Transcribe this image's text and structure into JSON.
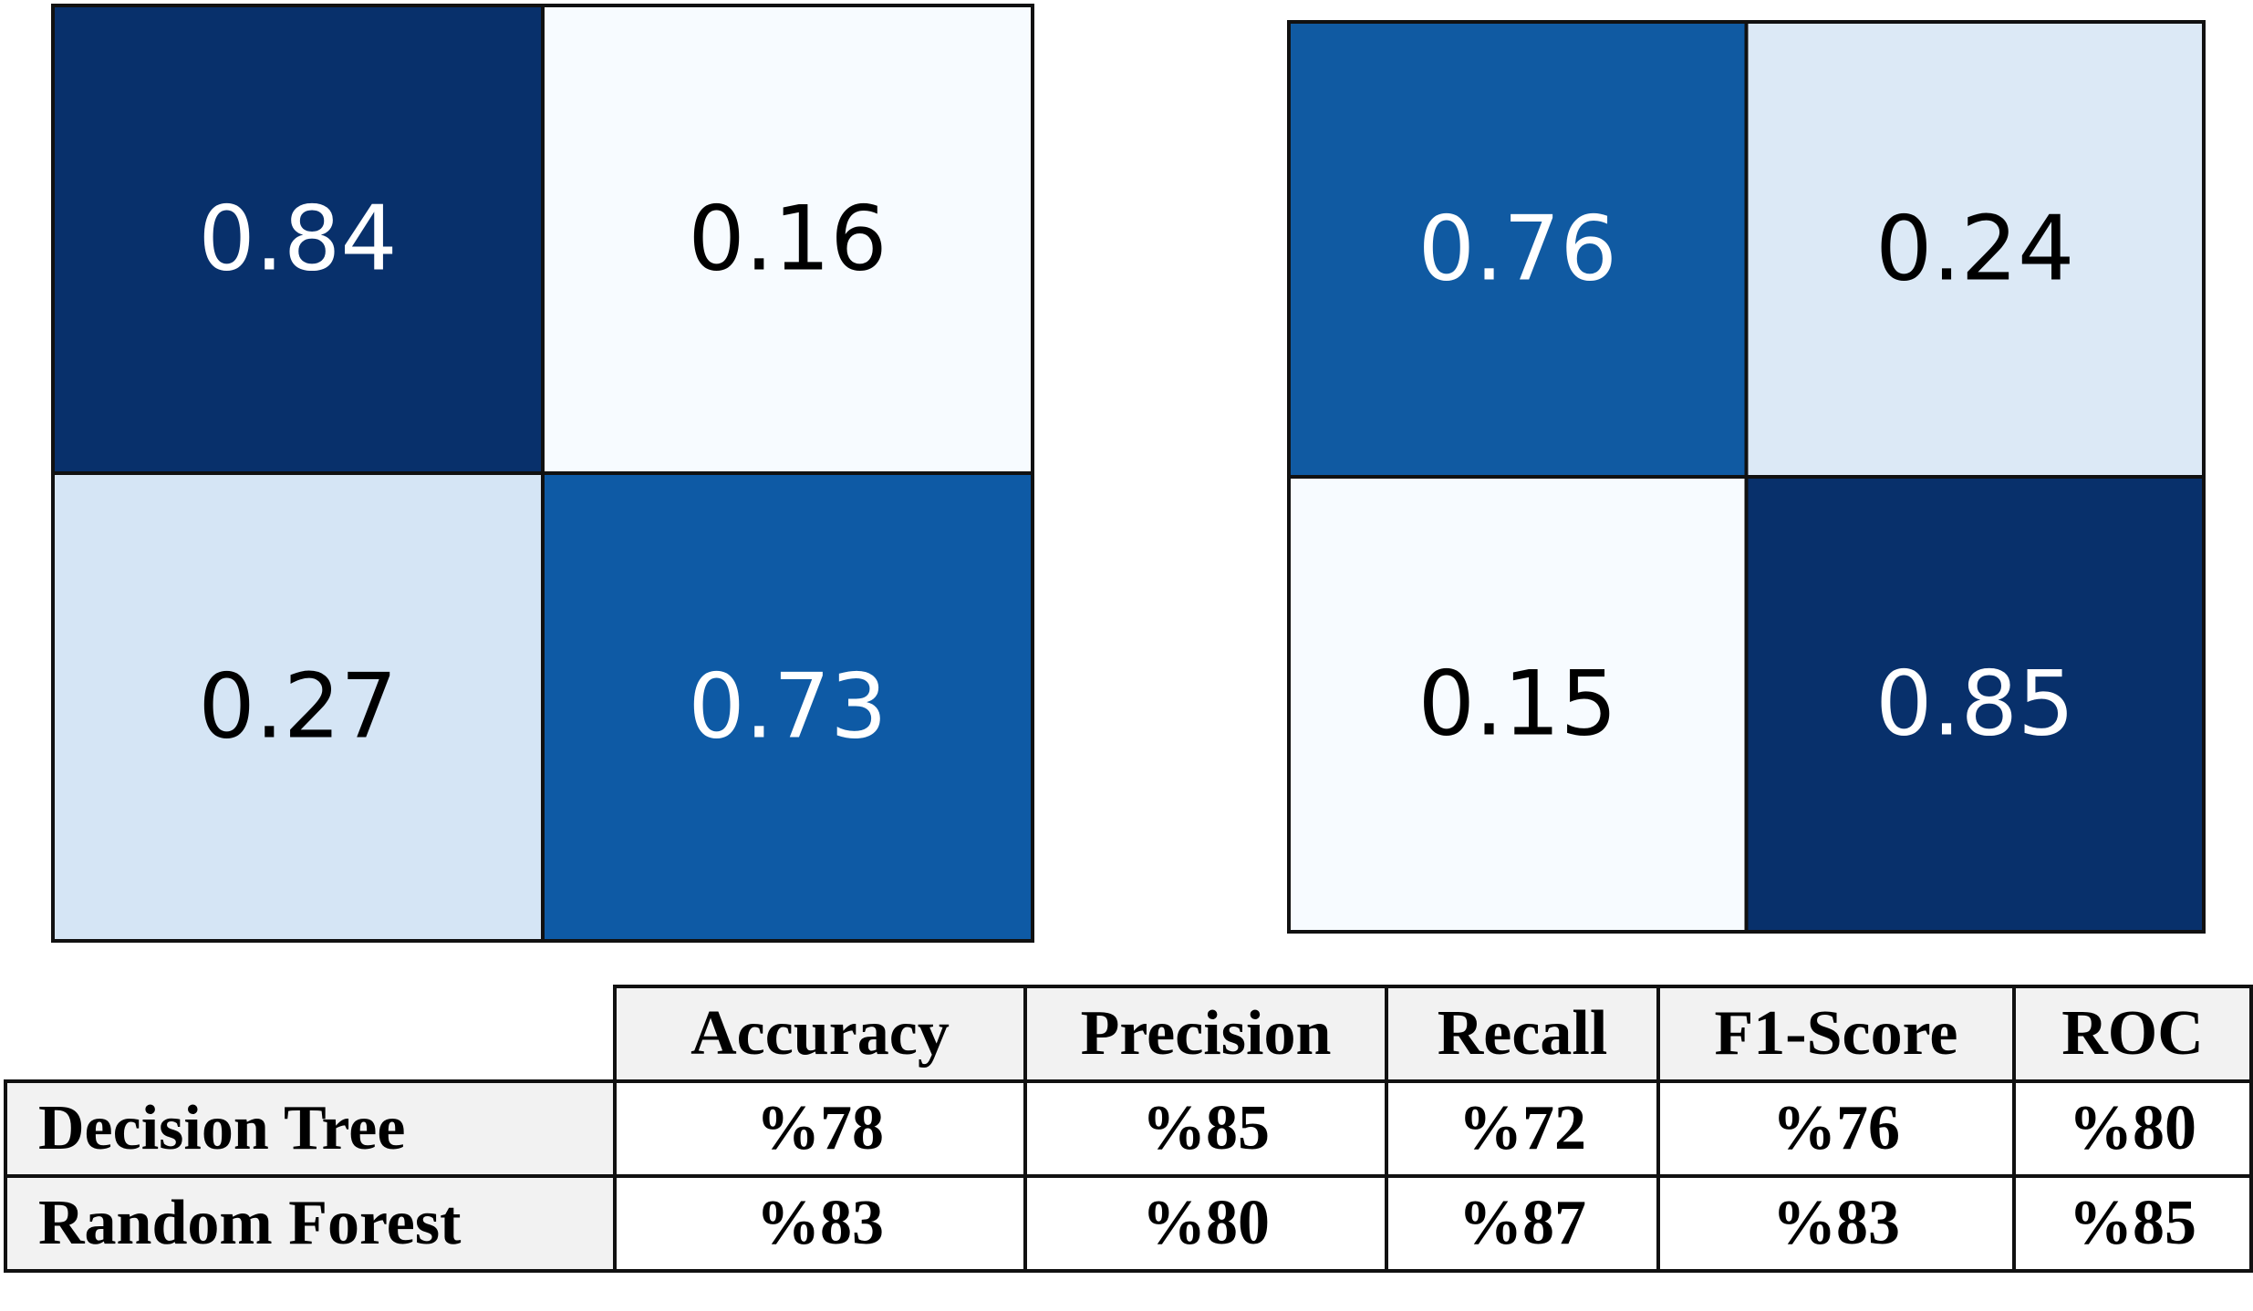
{
  "chart_data": [
    {
      "type": "heatmap",
      "rows": 2,
      "cols": 2,
      "values": [
        [
          0.84,
          0.16
        ],
        [
          0.27,
          0.73
        ]
      ],
      "labels": [
        [
          "0.84",
          "0.16"
        ],
        [
          "0.27",
          "0.73"
        ]
      ],
      "colors": [
        [
          "#08306b",
          "#f7fbff"
        ],
        [
          "#d5e5f5",
          "#0e5aa5"
        ]
      ],
      "text_colors": [
        [
          "#ffffff",
          "#000000"
        ],
        [
          "#000000",
          "#ffffff"
        ]
      ]
    },
    {
      "type": "heatmap",
      "rows": 2,
      "cols": 2,
      "values": [
        [
          0.76,
          0.24
        ],
        [
          0.15,
          0.85
        ]
      ],
      "labels": [
        [
          "0.76",
          "0.24"
        ],
        [
          "0.15",
          "0.85"
        ]
      ],
      "colors": [
        [
          "#105aa2",
          "#dce9f6"
        ],
        [
          "#f7fbff",
          "#08306b"
        ]
      ],
      "text_colors": [
        [
          "#ffffff",
          "#000000"
        ],
        [
          "#000000",
          "#ffffff"
        ]
      ]
    },
    {
      "type": "table",
      "columns": [
        "Accuracy",
        "Precision",
        "Recall",
        "F1-Score",
        "ROC"
      ],
      "rows": [
        {
          "label": "Decision Tree",
          "values": [
            "%78",
            "%85",
            "%72",
            "%76",
            "%80"
          ]
        },
        {
          "label": "Random Forest",
          "values": [
            "%83",
            "%80",
            "%87",
            "%83",
            "%85"
          ]
        }
      ]
    }
  ]
}
